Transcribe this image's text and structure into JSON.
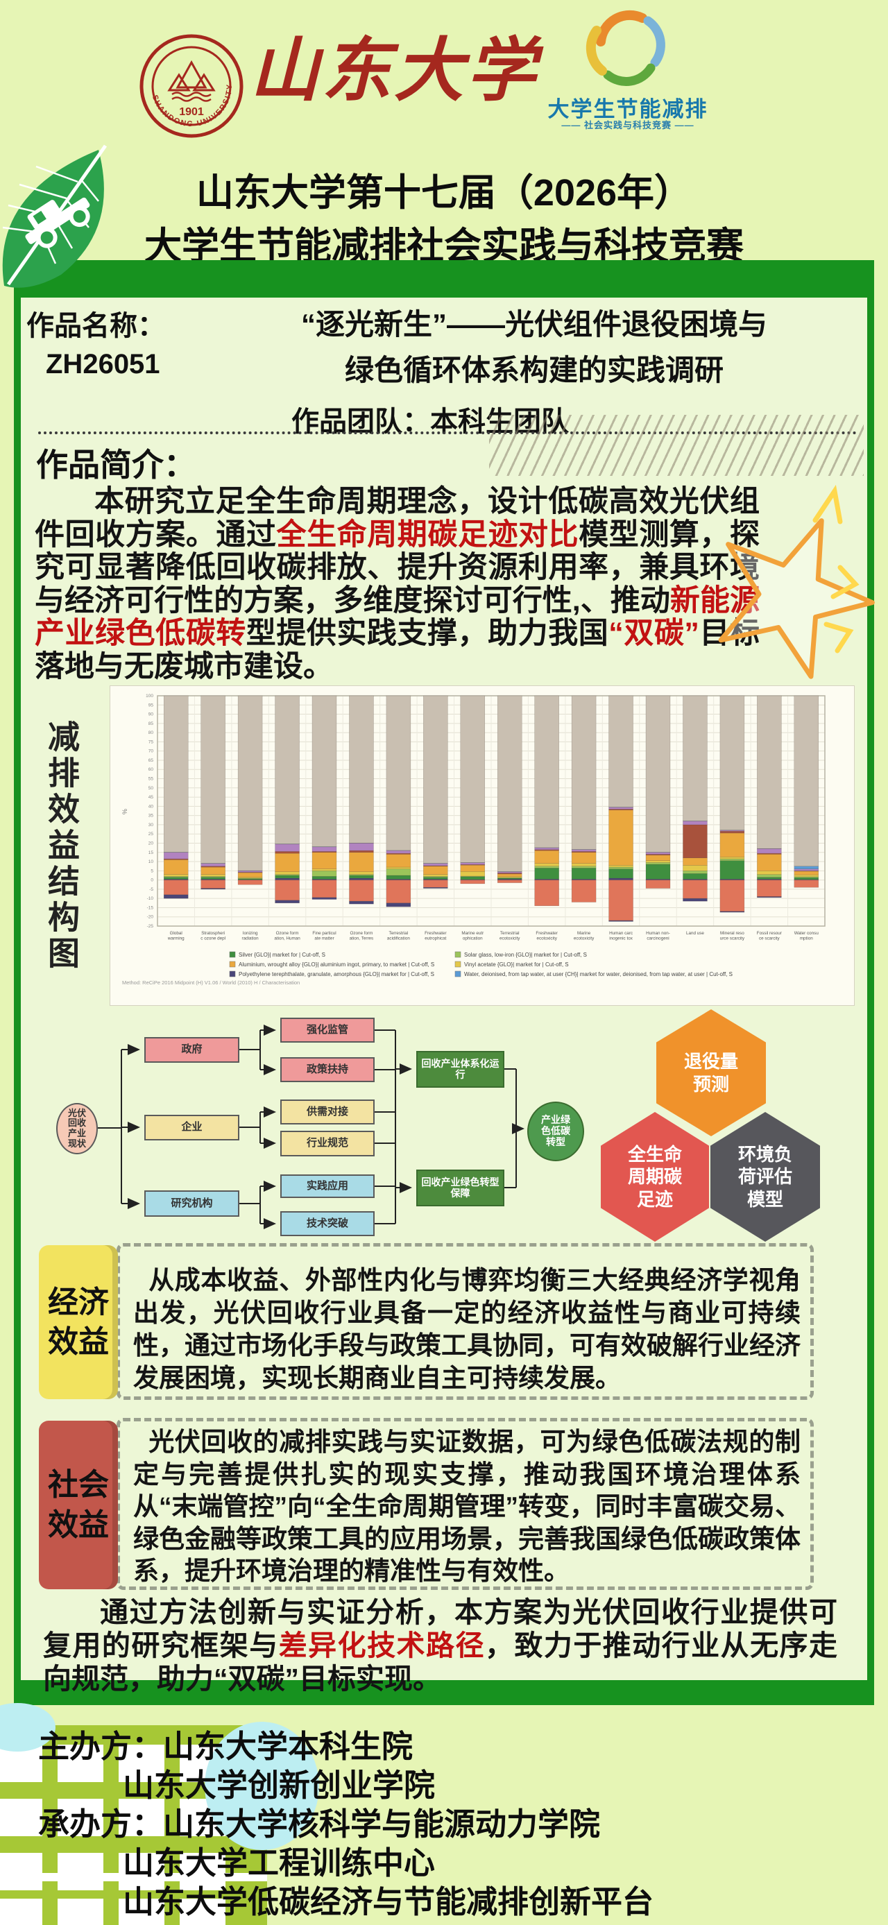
{
  "colors": {
    "page_bg": "#e6f5b5",
    "panel_bg": "#edf7d6",
    "dark_green": "#17921f",
    "red_text": "#c21212",
    "seal_red": "#a5281e",
    "logo_blue": "#1878ac",
    "econ_tab": "#f2e35f",
    "social_tab": "#c2574b",
    "hex_orange": "#f0922b",
    "hex_red": "#e25750",
    "hex_dark": "#57575c"
  },
  "header": {
    "university_name": "山东大学",
    "seal_year": "1901",
    "seal_en": "SHANDONG UNIVERSITY",
    "logo_title": "大学生节能减排",
    "logo_subtitle": "——  社会实践与科技竞赛  ——",
    "title_line1": "山东大学第十七届（2026年）",
    "title_line2": "大学生节能减排社会实践与科技竞赛"
  },
  "work": {
    "name_label": "作品名称：",
    "code": "ZH26051",
    "title_line1": "“逐光新生”——光伏组件退役困境与",
    "title_line2": "绿色循环体系构建的实践调研",
    "team": "作品团队：本科生团队"
  },
  "intro": {
    "heading": "作品简介：",
    "segments": [
      {
        "t": "本研究立足全生命周期理念，设计低碳高效光伏组件回收方案。通过",
        "s": "plain"
      },
      {
        "t": "全生命周期碳足迹对比",
        "s": "b_red"
      },
      {
        "t": "模型测算，探究可显著降低回收碳排放、提升资源利用率，兼具环境与经济可行性的方案，多维度探讨可行性,、推动",
        "s": "plain"
      },
      {
        "t": "新能源产业绿色低碳转",
        "s": "red"
      },
      {
        "t": "型提供实践支撑，助力我国",
        "s": "plain"
      },
      {
        "t": "“双碳”",
        "s": "red"
      },
      {
        "t": "目标落地与无废城市建设。",
        "s": "plain"
      }
    ]
  },
  "chart_section_label": "减排效益结构图",
  "chart_data": {
    "type": "bar",
    "stacked": true,
    "title": "",
    "xlabel": "",
    "ylabel": "%",
    "ylim": [
      -25,
      100
    ],
    "y_tick_step": 5,
    "grid": true,
    "legend_position": "bottom",
    "method_caption": "Method: ReCiPe 2016 Midpoint (H) V1.06 / World (2010) H / Characterisation",
    "categories": [
      "Global warming",
      "Stratospheric ozone depletion",
      "Ionizing radiation",
      "Ozone formation, Human health",
      "Fine particulate matter formation",
      "Ozone formation, Terrestrial ecosystems",
      "Terrestrial acidification",
      "Freshwater eutrophication",
      "Marine eutrophication",
      "Terrestrial ecotoxicity",
      "Freshwater ecotoxicity",
      "Marine ecotoxicity",
      "Human carcinogenic toxicity",
      "Human non-carcinogenic toxicity",
      "Land use",
      "Mineral resource scarcity",
      "Fossil resource scarcity",
      "Water consumption"
    ],
    "categories_two_line": [
      [
        "Global",
        "warming"
      ],
      [
        "Stratospheri",
        "c ozone depl"
      ],
      [
        "Ionizing",
        "radiation"
      ],
      [
        "Ozone form",
        "ation, Human"
      ],
      [
        "Fine particul",
        "ate matter"
      ],
      [
        "Ozone form",
        "ation, Terres"
      ],
      [
        "Terrestrial",
        "acidification"
      ],
      [
        "Freshwater",
        "eutrophicat"
      ],
      [
        "Marine eutr",
        "ophication"
      ],
      [
        "Terrestrial",
        "ecotoxicity"
      ],
      [
        "Freshwater",
        "ecotoxicity"
      ],
      [
        "Marine",
        "ecotoxicity"
      ],
      [
        "Human carc",
        "inogenic tox"
      ],
      [
        "Human non-",
        "carcinogeni"
      ],
      [
        "Land use",
        ""
      ],
      [
        "Mineral reso",
        "urce scarcity"
      ],
      [
        "Fossil resour",
        "ce scarcity"
      ],
      [
        "Water consu",
        "mption"
      ]
    ],
    "series": [
      {
        "name": "Polyethylene terephthalate, granulate, amorphous {GLO}| market for | Cut-off, S",
        "color": "#4a4678",
        "legend_col": 1,
        "legend_row": 3,
        "values": [
          0.5,
          0.5,
          0.2,
          1,
          0.5,
          1,
          0.5,
          0.5,
          0.3,
          0.5,
          0.5,
          0.5,
          1,
          0.5,
          0.5,
          0.5,
          0.5,
          0.3
        ]
      },
      {
        "name": "Silver {GLO}| market for | Cut-off, S",
        "color": "#3f8f3f",
        "legend_col": 1,
        "legend_row": 1,
        "values": [
          1,
          1,
          0.5,
          1.5,
          1.5,
          1.5,
          2,
          1,
          1.5,
          0.5,
          6,
          6,
          5,
          8,
          3,
          10,
          1,
          1
        ]
      },
      {
        "name": "Solar glass, low-iron {GLO}| market for | Cut-off, S",
        "color": "#9cc45a",
        "legend_col": 2,
        "legend_row": 1,
        "values": [
          0.5,
          0.5,
          0.3,
          0.5,
          3,
          0.5,
          3.5,
          0.5,
          0.3,
          0.3,
          1,
          1,
          1,
          1,
          1.5,
          1,
          1.5,
          0.5
        ]
      },
      {
        "name": "Vinyl acetate {GLO}| market for | Cut-off, S",
        "color": "#e3c84a",
        "legend_col": 2,
        "legend_row": 2,
        "values": [
          1,
          1,
          0.5,
          1.5,
          1,
          1.5,
          1,
          1,
          2.5,
          0.5,
          1.5,
          1.5,
          1,
          1,
          3,
          1,
          2,
          1
        ]
      },
      {
        "name": "Aluminium, wrought alloy {GLO}| aluminium ingot, primary, to market | Cut-off, S",
        "color": "#eaa83e",
        "legend_col": 1,
        "legend_row": 2,
        "values": [
          8,
          4,
          2.5,
          10,
          9,
          10.5,
          7,
          4.5,
          3.5,
          1.5,
          7,
          6,
          30,
          3,
          4,
          13,
          9,
          2
        ]
      },
      {
        "name": "unlabeled (brown)",
        "color": "#a8523c",
        "values": [
          0.5,
          0.5,
          0.2,
          1,
          0.5,
          1,
          0.5,
          0.3,
          0.3,
          0.5,
          0.5,
          0.5,
          0.5,
          0.5,
          18,
          1,
          0.5,
          0.2
        ]
      },
      {
        "name": "unlabeled (purple)",
        "color": "#b183c0",
        "values": [
          3.5,
          1.5,
          0.8,
          4,
          2.5,
          4,
          1.5,
          1.2,
          1,
          0.7,
          1,
          1,
          1,
          1,
          2,
          0.5,
          2.5,
          1
        ]
      },
      {
        "name": "Water, deionised, from tap water, at user {CH}| market for water, deionised, from tap water, at user | Cut-off, S",
        "color": "#5b9bd5",
        "legend_col": 2,
        "legend_row": 3,
        "values": [
          0.1,
          0.1,
          0.1,
          0.1,
          0.1,
          0.1,
          0.1,
          0.1,
          0.1,
          0.1,
          0.1,
          0.1,
          0.1,
          0.1,
          0.1,
          0.1,
          0.1,
          1.5
        ]
      },
      {
        "name": "unlabeled (grey remainder)",
        "color": "#c9bfb1",
        "values": [
          84.9,
          90.9,
          94.9,
          80.4,
          81.9,
          79.9,
          83.9,
          90.9,
          90.5,
          95.4,
          82.4,
          83.4,
          60.4,
          84.9,
          67.9,
          72.9,
          82.9,
          92.5
        ]
      },
      {
        "name": "unlabeled (salmon, negative)",
        "color": "#e0755a",
        "values": [
          -8,
          -4.5,
          -2.5,
          -11,
          -9.5,
          -11.5,
          -12.5,
          -4,
          -2,
          -1.5,
          -14,
          -12,
          -22,
          -4.5,
          -10,
          -17,
          -9,
          -4
        ]
      },
      {
        "name": "unlabeled (dark, negative)",
        "color": "#4a4678",
        "values": [
          -2,
          -0.5,
          0,
          -1.5,
          -1,
          -1.5,
          -2,
          -0.5,
          0,
          0,
          0,
          0,
          -0.5,
          0,
          -1.5,
          -0.5,
          -0.5,
          0
        ]
      }
    ]
  },
  "flowchart": {
    "source": "光伏\n回收\n产业\n现状",
    "groups": [
      {
        "label": "政府",
        "children": [
          "强化监管",
          "政策扶持"
        ]
      },
      {
        "label": "企业",
        "children": [
          "供需对接",
          "行业规范"
        ]
      },
      {
        "label": "研究机构",
        "children": [
          "实践应用",
          "技术突破"
        ]
      }
    ],
    "mid": [
      "回收产业体系化运\n行",
      "回收产业绿色转型\n保障"
    ],
    "target": "产业绿\n色低碳\n转型"
  },
  "hexagons": [
    {
      "label": "退役量\n预测"
    },
    {
      "label": "全生命\n周期碳\n足迹"
    },
    {
      "label": "环境负\n荷评估\n模型"
    }
  ],
  "economic": {
    "tab": "经济\n效益",
    "text": "从成本收益、外部性内化与博弈均衡三大经典经济学视角出发，光伏回收行业具备一定的经济收益性与商业可持续性，通过市场化手段与政策工具协同，可有效破解行业经济发展困境，实现长期商业自主可持续发展。"
  },
  "social": {
    "tab": "社会\n效益",
    "text": "光伏回收的减排实践与实证数据，可为绿色低碳法规的制定与完善提供扎实的现实支撑，推动我国环境治理体系从“末端管控”向“全生命周期管理”转变，同时丰富碳交易、绿色金融等政策工具的应用场景，完善我国绿色低碳政策体系，提升环境治理的精准性与有效性。"
  },
  "conclusion": {
    "segments": [
      {
        "t": "通过方法创新与实证分析，本方案为光伏回收行业提供可复用的研究框架与",
        "s": "plain"
      },
      {
        "t": "差异化技术路径",
        "s": "b_red"
      },
      {
        "t": "，致力于推动行业从无序走向规范，助力“双碳”目标实现。",
        "s": "plain"
      }
    ]
  },
  "footer": {
    "lines": [
      {
        "label": "主办方：",
        "text": "山东大学本科生院"
      },
      {
        "label": "",
        "text": "山东大学创新创业学院"
      },
      {
        "label": "承办方：",
        "text": "山东大学核科学与能源动力学院"
      },
      {
        "label": "",
        "text": "山东大学工程训练中心"
      },
      {
        "label": "",
        "text": "山东大学低碳经济与节能减排创新平台"
      }
    ]
  }
}
